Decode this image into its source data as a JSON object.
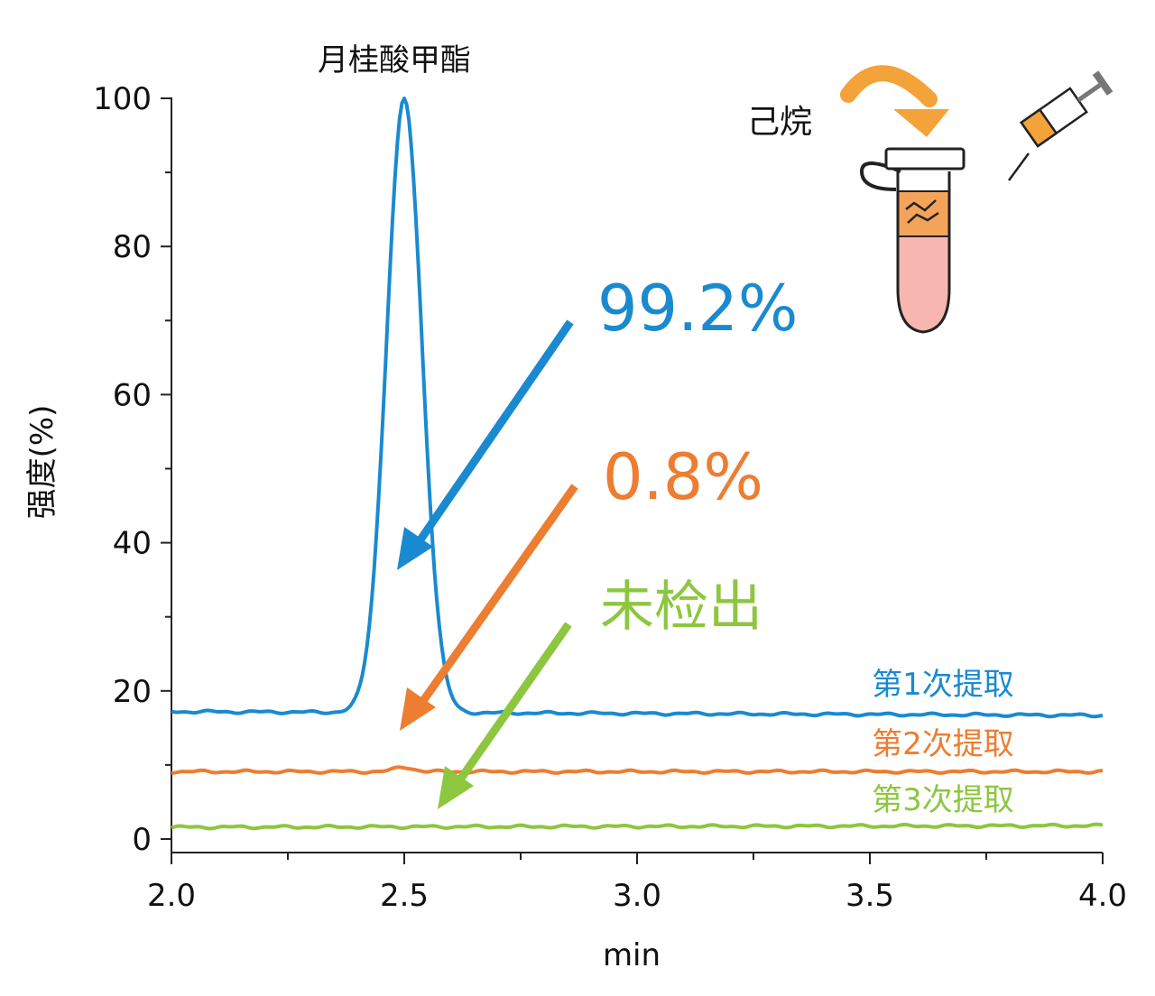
{
  "chart_data": {
    "type": "line",
    "title": "",
    "xlabel": "min",
    "ylabel": "强度(%)",
    "xlim": [
      2.0,
      4.0
    ],
    "ylim": [
      0,
      100
    ],
    "x_ticks": [
      "2.0",
      "2.5",
      "3.0",
      "3.5",
      "4.0"
    ],
    "y_ticks": [
      "0",
      "20",
      "40",
      "60",
      "80",
      "100"
    ],
    "grid": false,
    "peak_label": "月桂酸甲酯",
    "series": [
      {
        "name": "第1次提取",
        "color": "#1a8ad0",
        "baseline": 17.2,
        "baseline_end": 16.7,
        "peak": {
          "x": 2.5,
          "y": 100,
          "sigma": 0.038
        },
        "points": [
          [
            2.0,
            17.2
          ],
          [
            2.1,
            17.3
          ],
          [
            2.2,
            17.1
          ],
          [
            2.3,
            17.2
          ],
          [
            2.38,
            17.6
          ],
          [
            2.42,
            25
          ],
          [
            2.44,
            55
          ],
          [
            2.47,
            96
          ],
          [
            2.5,
            100
          ],
          [
            2.53,
            96
          ],
          [
            2.56,
            55
          ],
          [
            2.58,
            25
          ],
          [
            2.62,
            17.6
          ],
          [
            2.7,
            17.4
          ],
          [
            2.8,
            17.2
          ],
          [
            3.0,
            17.1
          ],
          [
            3.2,
            17.0
          ],
          [
            3.4,
            16.9
          ],
          [
            3.6,
            16.9
          ],
          [
            3.8,
            16.8
          ],
          [
            4.0,
            16.7
          ]
        ]
      },
      {
        "name": "第2次提取",
        "color": "#ed7d31",
        "baseline": 9.1,
        "baseline_end": 9.1,
        "peak": {
          "x": 2.5,
          "y": 9.7,
          "sigma": 0.02
        },
        "points": [
          [
            2.0,
            9.1
          ],
          [
            2.5,
            9.7
          ],
          [
            3.0,
            9.2
          ],
          [
            3.5,
            9.2
          ],
          [
            4.0,
            9.1
          ]
        ]
      },
      {
        "name": "第3次提取",
        "color": "#8dc63f",
        "baseline": 1.6,
        "baseline_end": 1.8,
        "peak": null,
        "points": [
          [
            2.0,
            1.6
          ],
          [
            2.5,
            1.6
          ],
          [
            3.0,
            1.8
          ],
          [
            3.5,
            1.7
          ],
          [
            4.0,
            1.8
          ]
        ]
      }
    ],
    "annotations": [
      {
        "text": "99.2%",
        "color": "#1a8ad0",
        "series": "第1次提取"
      },
      {
        "text": "0.8%",
        "color": "#ed7d31",
        "series": "第2次提取"
      },
      {
        "text": "未检出",
        "color": "#8dc63f",
        "series": "第3次提取"
      }
    ]
  },
  "illustration": {
    "solvent_label": "己烷",
    "curved_arrow_color": "#f4a23a",
    "tube_top_color": "#f4a35a",
    "tube_bottom_color": "#f7b6b0",
    "syringe_liquid_color": "#f4a23a",
    "icons": [
      "curved-arrow-icon",
      "microcentrifuge-tube-icon",
      "syringe-icon"
    ]
  }
}
